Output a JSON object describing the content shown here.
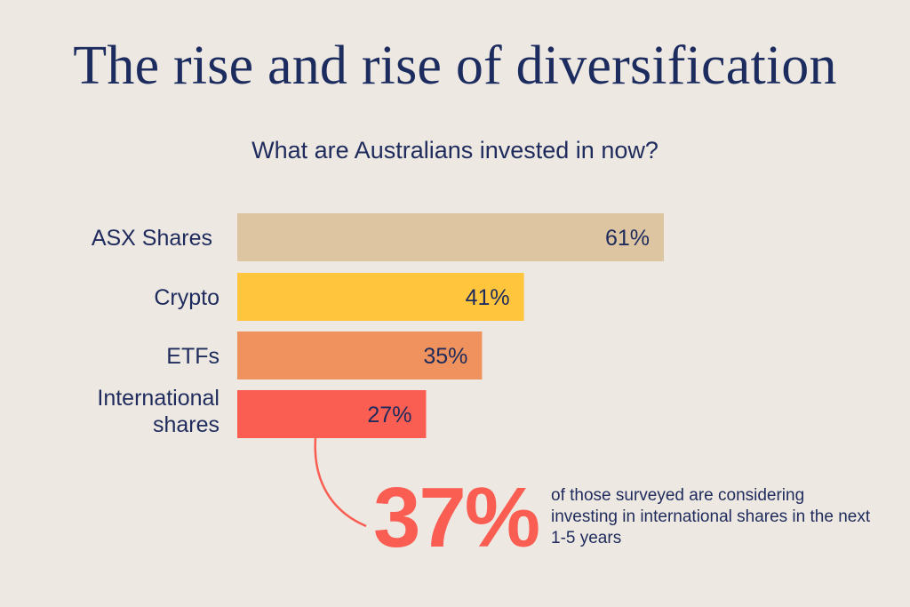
{
  "chart_data": {
    "type": "bar",
    "orientation": "horizontal",
    "title": "The rise and rise of diversification",
    "subtitle": "What are Australians invested in now?",
    "categories": [
      "ASX Shares",
      "Crypto",
      "ETFs",
      "International shares"
    ],
    "values": [
      61,
      41,
      35,
      27
    ],
    "value_labels": [
      "61%",
      "41%",
      "35%",
      "27%"
    ],
    "colors": [
      "#ddc5a2",
      "#fec53d",
      "#f0925d",
      "#fa5d52"
    ],
    "unit": "%",
    "grid": false,
    "annotation": {
      "value": "37%",
      "text": "of those surveyed are considering investing in international shares in the next 1-5 years",
      "color": "#fa5d52"
    }
  }
}
